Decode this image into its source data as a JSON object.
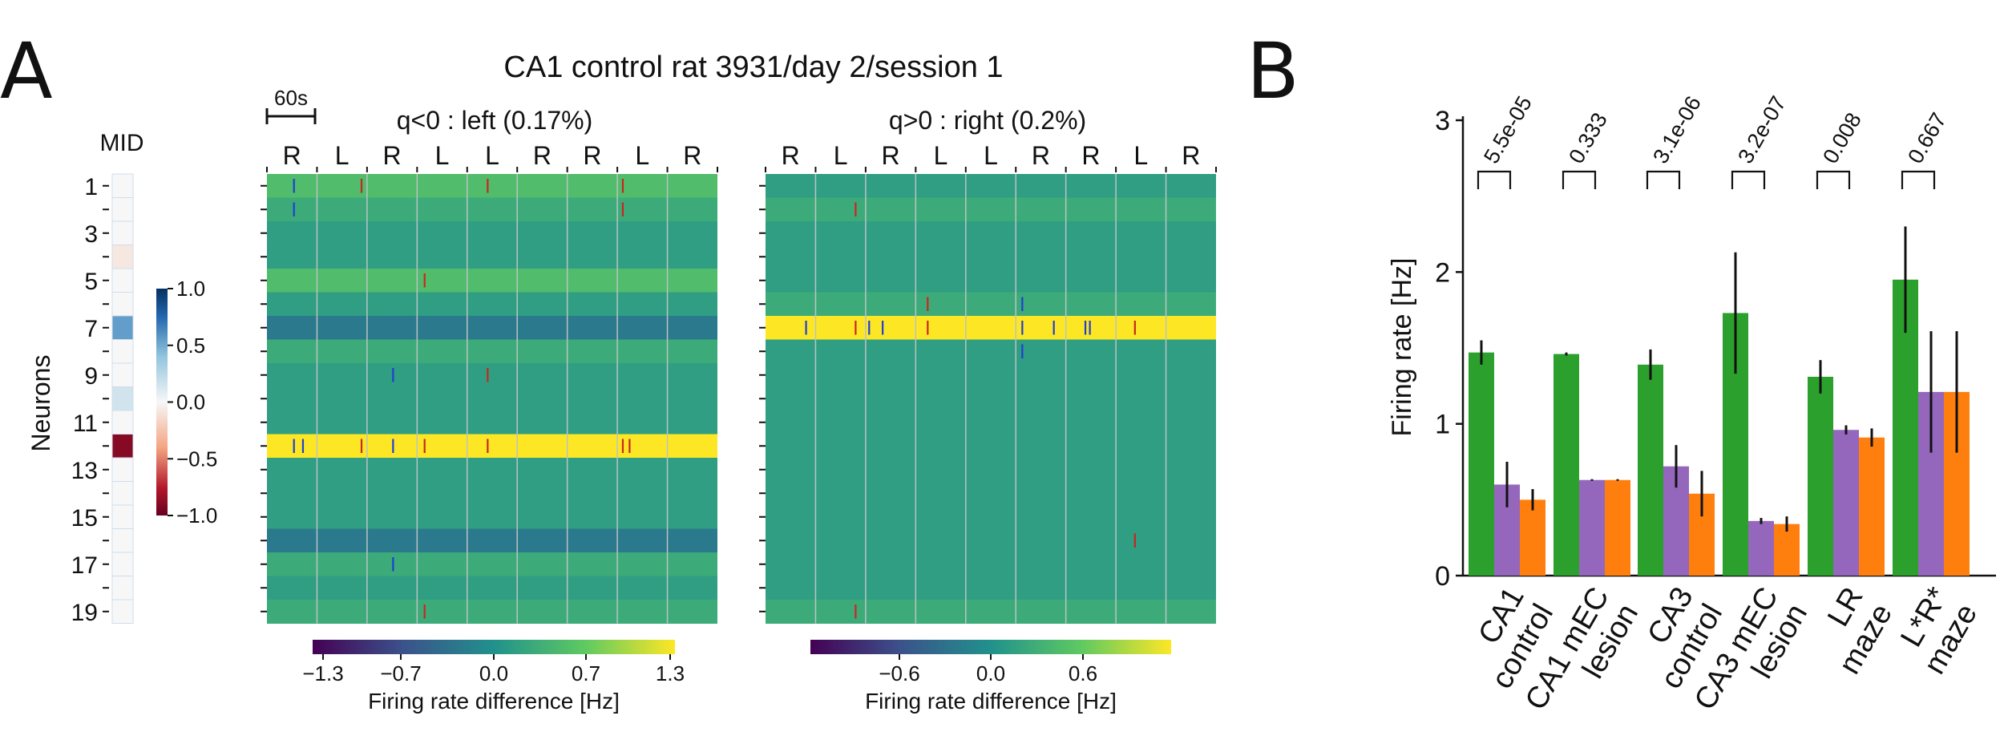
{
  "panels": {
    "a": {
      "letter": "A",
      "title": "CA1 control rat 3931/day 2/session 1",
      "scale_label": "60s",
      "mid_label": "MID",
      "neurons_label": "Neurons",
      "neuron_ticks": [
        "1",
        "3",
        "5",
        "7",
        "9",
        "11",
        "13",
        "15",
        "17",
        "19"
      ],
      "mid_colorbar_ticks": [
        "1.0",
        "0.5",
        "0.0",
        "−0.5",
        "−1.0"
      ],
      "mid_values": [
        0.0,
        0.0,
        0.0,
        -0.08,
        0.0,
        0.0,
        0.55,
        0.0,
        0.0,
        0.15,
        0.0,
        -0.9,
        0.0,
        0.0,
        0.0,
        0.0,
        0.0,
        0.0,
        0.0
      ],
      "left_heatmap": {
        "title": "q<0 : left  (0.17%)",
        "trial_labels": [
          "R",
          "L",
          "R",
          "L",
          "L",
          "R",
          "R",
          "L",
          "R"
        ],
        "colorbar_ticks": [
          "−1.3",
          "−0.7",
          "0.0",
          "0.7",
          "1.3"
        ],
        "colorbar_label": "Firing rate difference [Hz]",
        "row_values": [
          0.5,
          0.3,
          0.15,
          0.15,
          0.5,
          0.15,
          -0.25,
          0.3,
          0.15,
          0.15,
          0.15,
          1.3,
          0.15,
          0.15,
          0.15,
          -0.25,
          0.3,
          0.15,
          0.3
        ],
        "ticks": [
          {
            "row": 1,
            "t": 0.06,
            "c": "blue"
          },
          {
            "row": 1,
            "t": 0.21,
            "c": "red"
          },
          {
            "row": 1,
            "t": 0.49,
            "c": "red"
          },
          {
            "row": 1,
            "t": 0.79,
            "c": "red"
          },
          {
            "row": 2,
            "t": 0.06,
            "c": "blue"
          },
          {
            "row": 2,
            "t": 0.79,
            "c": "red"
          },
          {
            "row": 5,
            "t": 0.35,
            "c": "red"
          },
          {
            "row": 9,
            "t": 0.28,
            "c": "blue"
          },
          {
            "row": 9,
            "t": 0.49,
            "c": "red"
          },
          {
            "row": 12,
            "t": 0.06,
            "c": "blue"
          },
          {
            "row": 12,
            "t": 0.08,
            "c": "blue"
          },
          {
            "row": 12,
            "t": 0.21,
            "c": "red"
          },
          {
            "row": 12,
            "t": 0.28,
            "c": "blue"
          },
          {
            "row": 12,
            "t": 0.35,
            "c": "red"
          },
          {
            "row": 12,
            "t": 0.49,
            "c": "red"
          },
          {
            "row": 12,
            "t": 0.79,
            "c": "red"
          },
          {
            "row": 12,
            "t": 0.805,
            "c": "red"
          },
          {
            "row": 17,
            "t": 0.28,
            "c": "blue"
          },
          {
            "row": 19,
            "t": 0.35,
            "c": "red"
          }
        ]
      },
      "right_heatmap": {
        "title": "q>0 : right  (0.2%)",
        "trial_labels": [
          "R",
          "L",
          "R",
          "L",
          "L",
          "R",
          "R",
          "L",
          "R"
        ],
        "colorbar_ticks": [
          "−0.6",
          "0.0",
          "0.6"
        ],
        "colorbar_label": "Firing rate difference [Hz]",
        "row_values": [
          0.15,
          0.3,
          0.15,
          0.15,
          0.15,
          0.3,
          1.3,
          0.15,
          0.15,
          0.15,
          0.15,
          0.15,
          0.15,
          0.15,
          0.15,
          0.15,
          0.15,
          0.15,
          0.3
        ],
        "ticks": [
          {
            "row": 2,
            "t": 0.2,
            "c": "red"
          },
          {
            "row": 6,
            "t": 0.36,
            "c": "red"
          },
          {
            "row": 6,
            "t": 0.57,
            "c": "blue"
          },
          {
            "row": 7,
            "t": 0.09,
            "c": "blue"
          },
          {
            "row": 7,
            "t": 0.2,
            "c": "red"
          },
          {
            "row": 7,
            "t": 0.23,
            "c": "blue"
          },
          {
            "row": 7,
            "t": 0.26,
            "c": "blue"
          },
          {
            "row": 7,
            "t": 0.36,
            "c": "red"
          },
          {
            "row": 7,
            "t": 0.57,
            "c": "blue"
          },
          {
            "row": 7,
            "t": 0.64,
            "c": "blue"
          },
          {
            "row": 7,
            "t": 0.71,
            "c": "blue"
          },
          {
            "row": 7,
            "t": 0.72,
            "c": "blue"
          },
          {
            "row": 7,
            "t": 0.82,
            "c": "red"
          },
          {
            "row": 8,
            "t": 0.57,
            "c": "blue"
          },
          {
            "row": 16,
            "t": 0.82,
            "c": "red"
          },
          {
            "row": 19,
            "t": 0.2,
            "c": "red"
          }
        ]
      }
    },
    "b": {
      "letter": "B",
      "ylabel": "Firing rate [Hz]"
    }
  },
  "colors": {
    "green": "#2ca02c",
    "purple": "#9467bd",
    "orange": "#ff7f0e",
    "trial_r": "#1a1aff",
    "trial_l": "#e8121b",
    "tick_blue": "#1f3fd1",
    "tick_red": "#c8261f"
  },
  "chart_data": {
    "type": "bar",
    "categories": [
      "CA1\ncontrol",
      "CA1 mEC\nlesion",
      "CA3\ncontrol",
      "CA3 mEC\nlesion",
      "LR\nmaze",
      "L*R*\nmaze"
    ],
    "series": [
      {
        "values": [
          1.47,
          1.46,
          1.39,
          1.73,
          1.31,
          1.95
        ],
        "errors": [
          0.08,
          0.01,
          0.1,
          0.4,
          0.11,
          0.35
        ]
      },
      {
        "values": [
          0.6,
          0.63,
          0.72,
          0.36,
          0.96,
          1.21
        ],
        "errors": [
          0.15,
          0.0,
          0.14,
          0.02,
          0.03,
          0.4
        ]
      },
      {
        "values": [
          0.5,
          0.63,
          0.54,
          0.34,
          0.91,
          1.21
        ],
        "errors": [
          0.07,
          0.0,
          0.15,
          0.05,
          0.06,
          0.4
        ]
      }
    ],
    "pvalues": [
      "5.5e-05",
      "0.333",
      "3.1e-06",
      "3.2e-07",
      "0.008",
      "0.667"
    ],
    "ylabel": "Firing rate [Hz]",
    "ylim": [
      0,
      3
    ],
    "yticks": [
      "0",
      "1",
      "2",
      "3"
    ]
  }
}
